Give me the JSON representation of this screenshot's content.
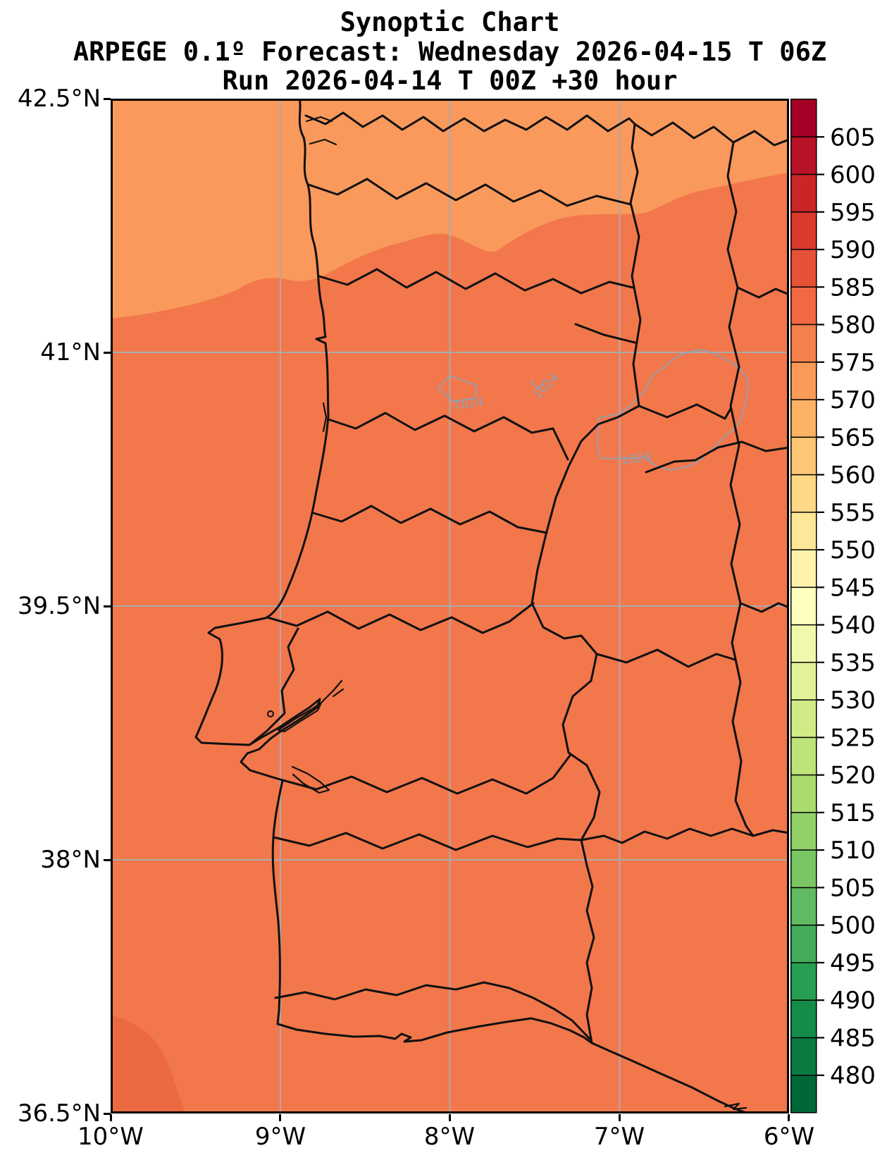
{
  "title": {
    "line1": "Synoptic Chart",
    "line2": "ARPEGE 0.1º Forecast: Wednesday 2026-04-15 T 06Z",
    "line3": "Run 2026-04-14 T 00Z +30 hour"
  },
  "axes": {
    "y_ticks": [
      "42.5°N",
      "41°N",
      "39.5°N",
      "38°N",
      "36.5°N"
    ],
    "x_ticks": [
      "10°W",
      "9°W",
      "8°W",
      "7°W",
      "6°W"
    ]
  },
  "colorbar": {
    "tick_labels": [
      "605",
      "600",
      "595",
      "590",
      "585",
      "580",
      "575",
      "570",
      "565",
      "560",
      "555",
      "550",
      "545",
      "540",
      "535",
      "530",
      "525",
      "520",
      "515",
      "510",
      "505",
      "500",
      "495",
      "490",
      "485",
      "480"
    ],
    "segments": [
      "#a50026",
      "#b81226",
      "#cb2527",
      "#db392b",
      "#e75136",
      "#f26841",
      "#f7814c",
      "#fa9a58",
      "#fdb264",
      "#fdc574",
      "#fed885",
      "#fee797",
      "#fff3ab",
      "#ffffbf",
      "#f0f9ab",
      "#e2f397",
      "#d1ec86",
      "#bee379",
      "#aadb6d",
      "#92d068",
      "#7ac665",
      "#60ba62",
      "#43ac5a",
      "#269e53",
      "#148d4a",
      "#0a7a41",
      "#006837"
    ]
  },
  "map": {
    "isobar_labels": [
      "1024",
      "1024",
      "1024"
    ],
    "colors": {
      "fill_main": "#f2774b",
      "fill_light": "#f9995c",
      "fill_dark": "#ec6a42",
      "grid": "#ababab",
      "boundary": "#111111",
      "contour": "#90a2b2",
      "frame": "#000000"
    }
  },
  "chart_data": {
    "type": "heatmap",
    "title": "Synoptic Chart",
    "subtitle": "ARPEGE 0.1º Forecast: Wednesday 2026-04-15 T 06Z",
    "run_info": "Run 2026-04-14 T 00Z +30 hour",
    "x_axis": {
      "label": "longitude",
      "tick_labels": [
        "10°W",
        "9°W",
        "8°W",
        "7°W",
        "6°W"
      ],
      "range_deg_west": [
        10,
        6
      ],
      "grid": true
    },
    "y_axis": {
      "label": "latitude",
      "tick_labels": [
        "42.5°N",
        "41°N",
        "39.5°N",
        "38°N",
        "36.5°N"
      ],
      "range_deg_north": [
        36.5,
        42.5
      ],
      "grid": true
    },
    "colorbar": {
      "tick_values": [
        605,
        600,
        595,
        590,
        585,
        580,
        575,
        570,
        565,
        560,
        555,
        550,
        545,
        540,
        535,
        530,
        525,
        520,
        515,
        510,
        505,
        500,
        495,
        490,
        485,
        480
      ],
      "step": 5,
      "colormap": "red-yellow-green (high=red, low=green), discrete 5-unit bands, extended above 605 and below 480",
      "legend_position": "right"
    },
    "filled_bands_visible": [
      {
        "band": "570-575",
        "region": "northern strip of map, boundary sloping from ~41.35N at west edge to ~42.05N at east edge"
      },
      {
        "band": "575-580",
        "region": "main body of map"
      },
      {
        "band": "580-585",
        "region": "small patch in southwest corner near 10W/36.6N"
      }
    ],
    "isobars": {
      "value_hPa": 1024,
      "labels_count": 3,
      "locations": [
        "small closed contour near 8.0W 40.7N",
        "small open contour near 7.4W 40.8N",
        "large closed contour near 6.4W 40.4N"
      ]
    },
    "map_region": "Portugal and western Spain with district/province boundaries"
  }
}
